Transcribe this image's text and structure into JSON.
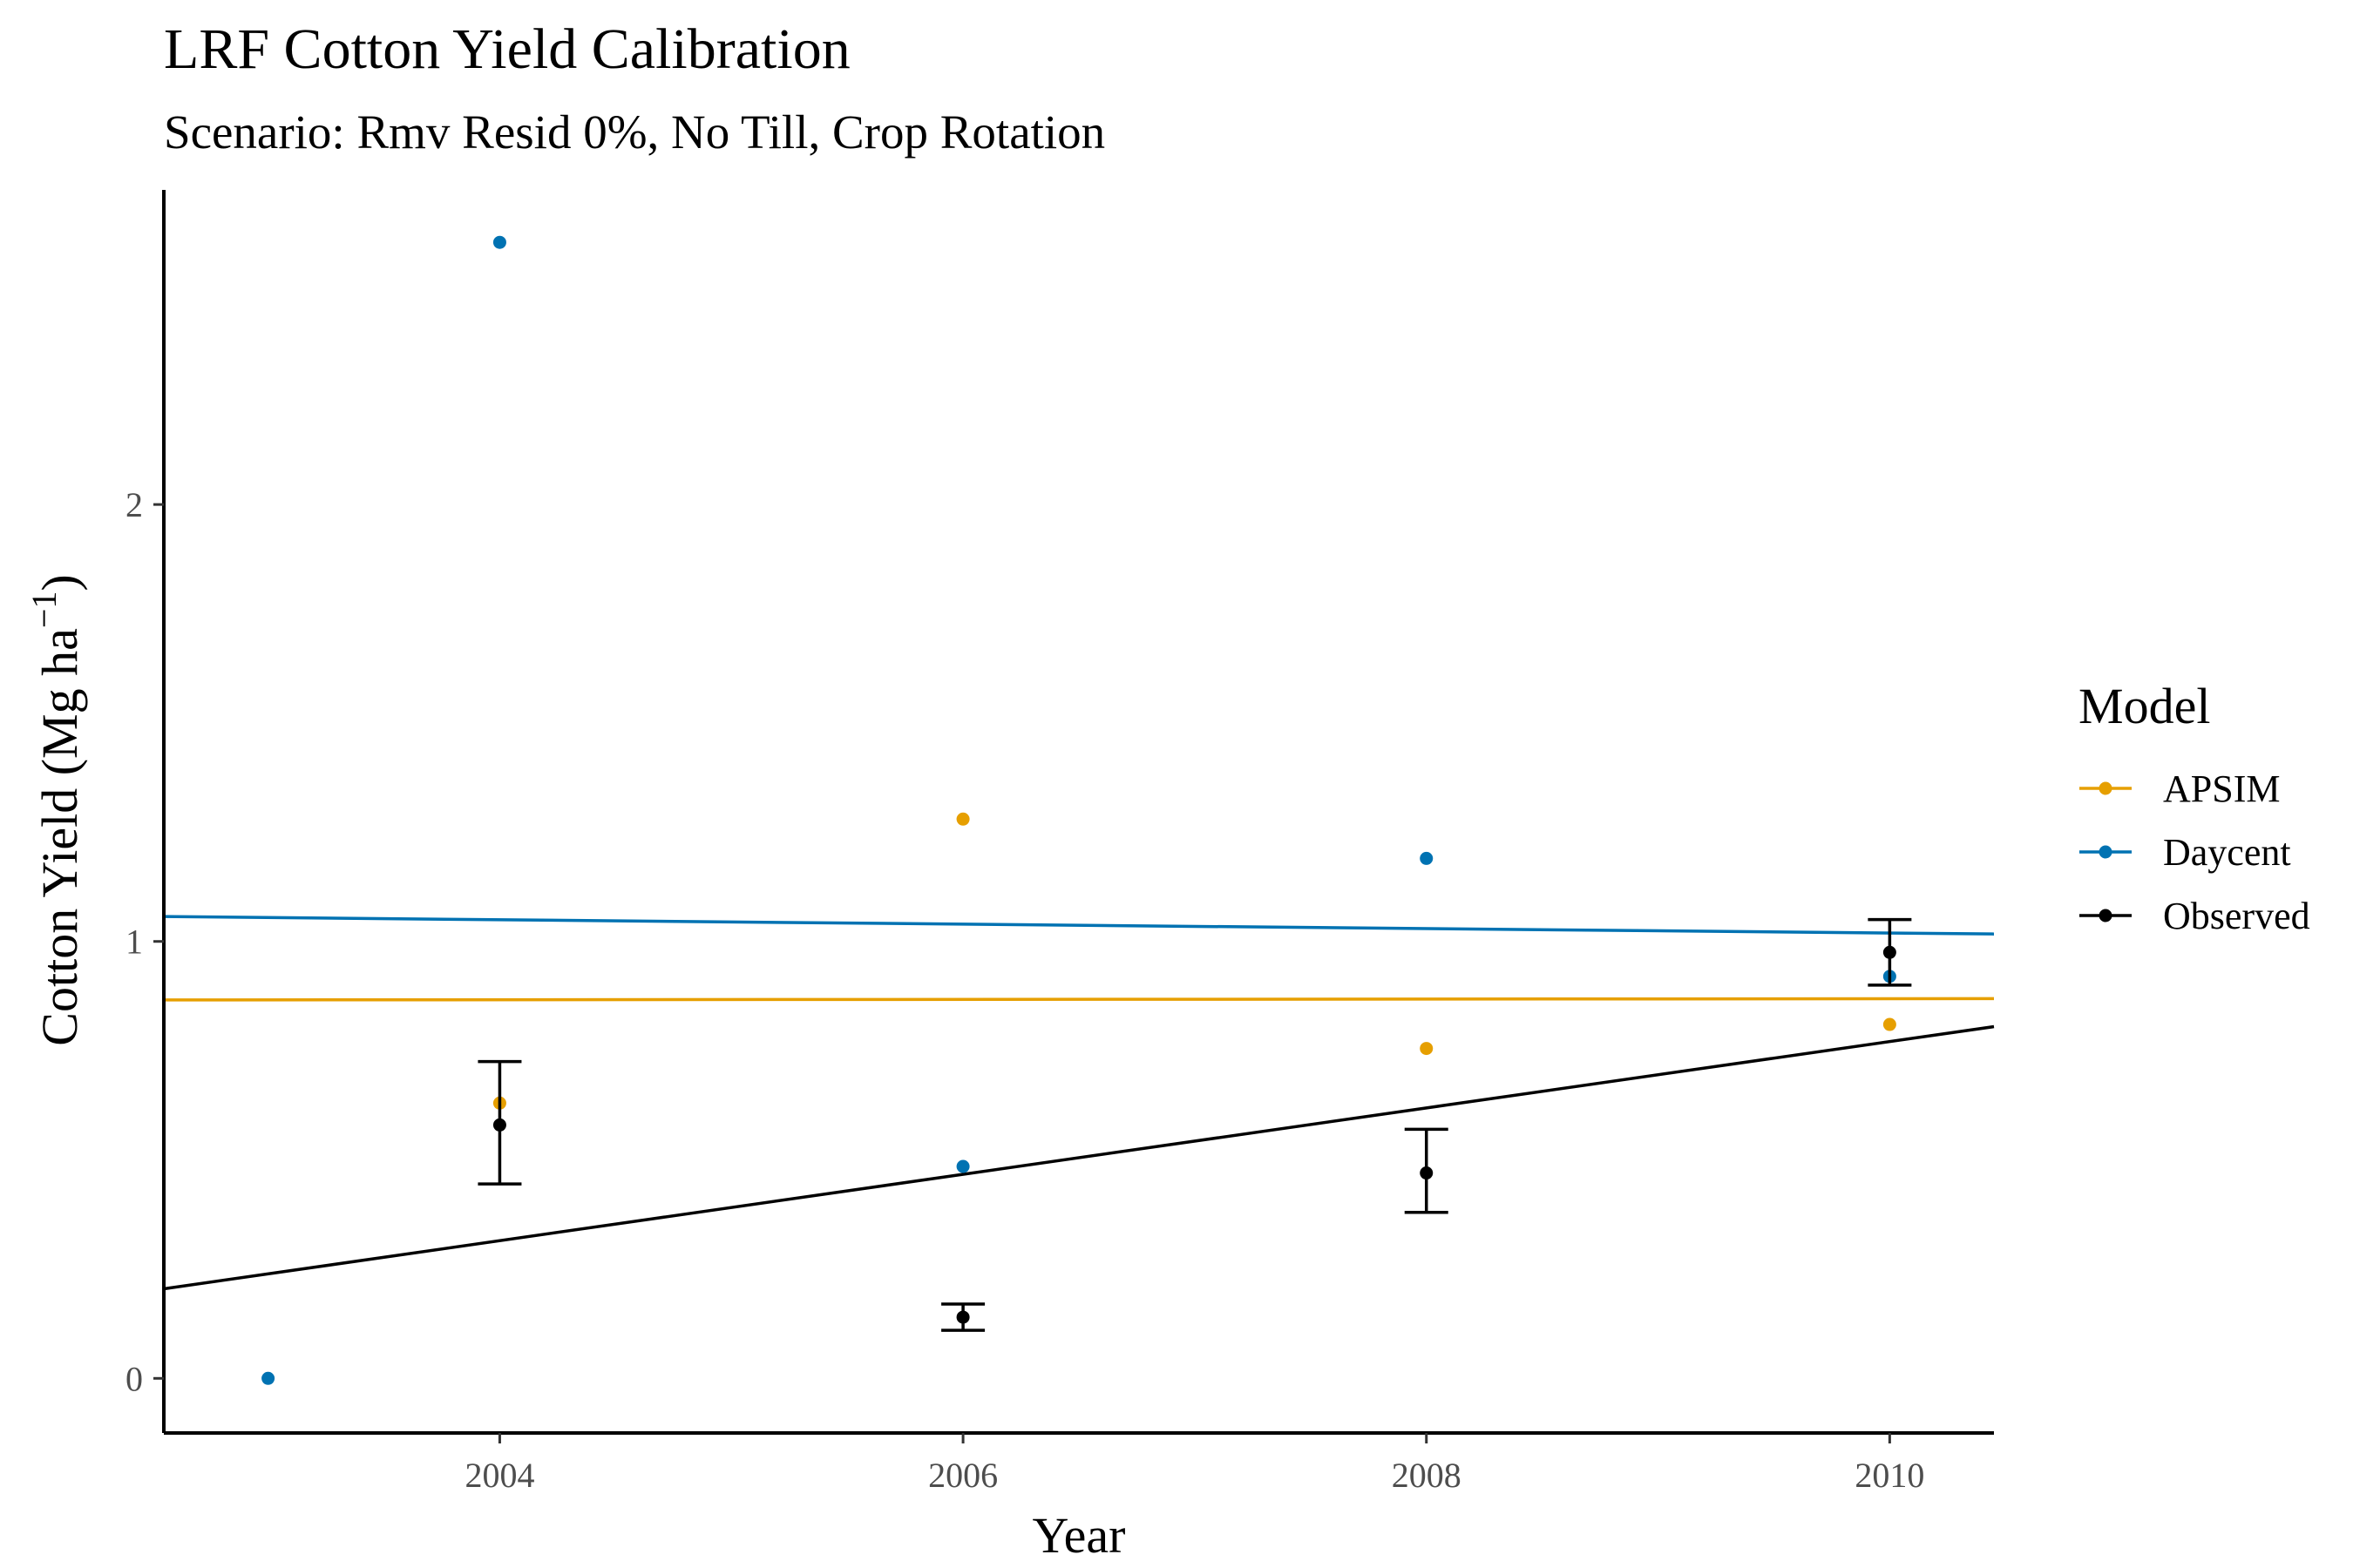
{
  "chart_data": {
    "type": "scatter",
    "title": "LRF Cotton Yield Calibration",
    "subtitle": "Scenario: Rmv Resid 0%, No Till, Crop Rotation",
    "xlabel": "Year",
    "ylabel": "Cotton Yield (Mg ha",
    "ylabel_sup": "−1",
    "ylabel_end": ")",
    "xlim": [
      2002.55,
      2010.45
    ],
    "ylim": [
      -0.125,
      2.72
    ],
    "x_ticks": [
      2004,
      2006,
      2008,
      2010
    ],
    "y_ticks": [
      0,
      1,
      2
    ],
    "grid": false,
    "legend": {
      "title": "Model",
      "position": "right",
      "entries": [
        "APSIM",
        "Daycent",
        "Observed"
      ]
    },
    "series": [
      {
        "name": "APSIM",
        "color": "#E69F00",
        "points": [
          {
            "x": 2004,
            "y": 0.63
          },
          {
            "x": 2006,
            "y": 1.28
          },
          {
            "x": 2008,
            "y": 0.755
          },
          {
            "x": 2010,
            "y": 0.81
          }
        ],
        "trend": {
          "x": [
            2002.55,
            2010.45
          ],
          "y": [
            0.866,
            0.869
          ]
        }
      },
      {
        "name": "Daycent",
        "color": "#0072B2",
        "points": [
          {
            "x": 2003,
            "y": 0.0
          },
          {
            "x": 2004,
            "y": 2.6
          },
          {
            "x": 2006,
            "y": 0.485
          },
          {
            "x": 2008,
            "y": 1.19
          },
          {
            "x": 2010,
            "y": 0.92
          }
        ],
        "trend": {
          "x": [
            2002.55,
            2010.45
          ],
          "y": [
            1.057,
            1.017
          ]
        }
      },
      {
        "name": "Observed",
        "color": "#000000",
        "points": [
          {
            "x": 2004,
            "y": 0.58,
            "ymin": 0.445,
            "ymax": 0.725
          },
          {
            "x": 2006,
            "y": 0.14,
            "ymin": 0.11,
            "ymax": 0.17
          },
          {
            "x": 2008,
            "y": 0.47,
            "ymin": 0.38,
            "ymax": 0.57
          },
          {
            "x": 2010,
            "y": 0.975,
            "ymin": 0.9,
            "ymax": 1.05
          }
        ],
        "trend": {
          "x": [
            2002.55,
            2010.45
          ],
          "y": [
            0.205,
            0.805
          ]
        }
      }
    ]
  }
}
